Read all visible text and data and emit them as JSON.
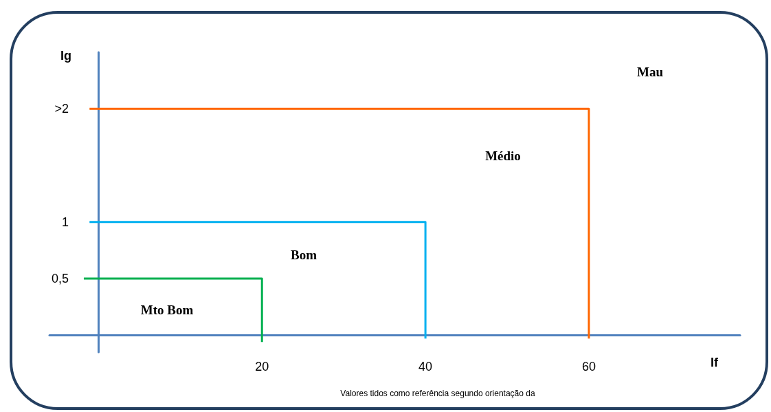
{
  "chart_data": {
    "type": "line",
    "xlabel": "If",
    "ylabel": "Ig",
    "series": [
      {
        "color": "#00b050",
        "x": [
          -1.8,
          20,
          20
        ],
        "values": [
          0.5,
          0.5,
          -0.06
        ]
      },
      {
        "color": "#00b0f0",
        "x": [
          -1.1,
          40,
          40
        ],
        "values": [
          1,
          1,
          -0.03
        ]
      },
      {
        "color": "#ff6600",
        "x": [
          -1.1,
          60,
          60
        ],
        "values": [
          2,
          2,
          -0.03
        ]
      }
    ],
    "xlim": [
      -6,
      78.5
    ],
    "xticks": [
      20,
      40,
      60
    ],
    "ylim": [
      -0.15,
      2.5
    ],
    "yticks": [
      {
        "value": 0.5,
        "label": "0,5"
      },
      1,
      {
        "value": 2,
        "label": ">2"
      }
    ],
    "annotations": [
      "Mau",
      "Médio",
      "Bom",
      "Mto Bom",
      "Valores tidos como referência segundo orientação da"
    ],
    "grid": false,
    "marker": "none",
    "line_style": "solid"
  }
}
